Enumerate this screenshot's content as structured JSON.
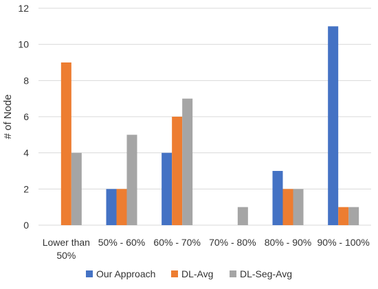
{
  "chart_data": {
    "type": "bar",
    "title": "",
    "xlabel": "",
    "ylabel": "# of Node",
    "categories": [
      [
        "Lower than",
        "50%"
      ],
      [
        "50% - 60%"
      ],
      [
        "60% - 70%"
      ],
      [
        "70% - 80%"
      ],
      [
        "80% - 90%"
      ],
      [
        "90% - 100%"
      ]
    ],
    "series": [
      {
        "name": "Our Approach",
        "color": "#4472C4",
        "values": [
          0,
          2,
          4,
          0,
          3,
          11
        ]
      },
      {
        "name": "DL-Avg",
        "color": "#ED7D31",
        "values": [
          9,
          2,
          6,
          0,
          2,
          1
        ]
      },
      {
        "name": "DL-Seg-Avg",
        "color": "#A5A5A5",
        "values": [
          4,
          5,
          7,
          1,
          2,
          1
        ]
      }
    ],
    "ylim": [
      0,
      12
    ],
    "yticks": [
      0,
      2,
      4,
      6,
      8,
      10,
      12
    ],
    "grid": true,
    "gridColor": "#D9D9D9",
    "legend": "bottom"
  }
}
